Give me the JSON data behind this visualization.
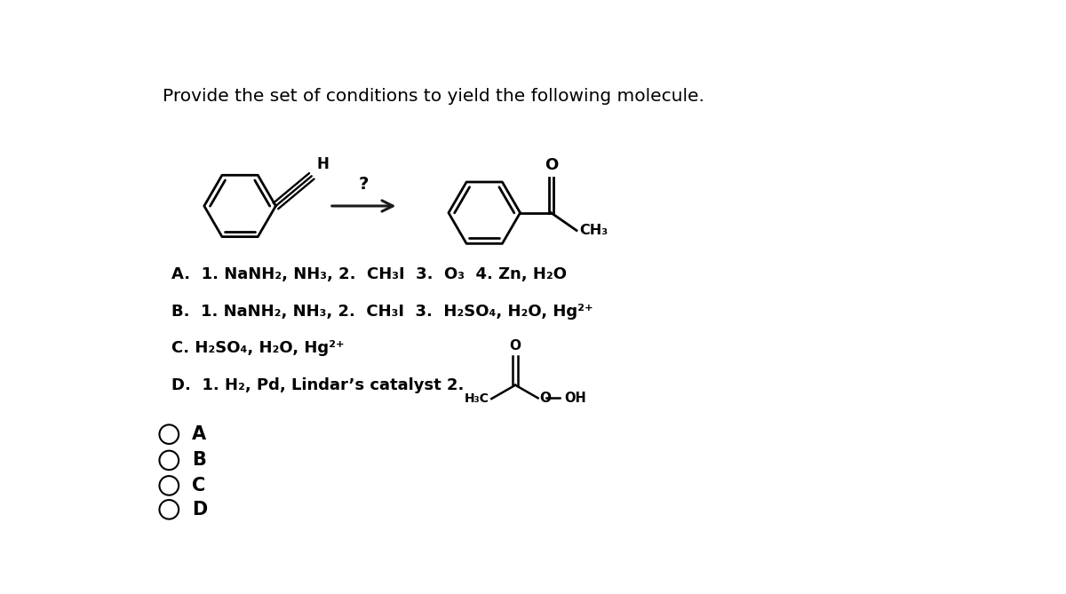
{
  "title": "Provide the set of conditions to yield the following molecule.",
  "title_fontsize": 14.5,
  "bg_color": "#ffffff",
  "text_color": "#000000",
  "option_A": "A.  1. NaNH₂, NH₃, 2.  CH₃I  3.  O₃  4. Zn, H₂O",
  "option_B": "B.  1. NaNH₂, NH₃, 2.  CH₃I  3.  H₂SO₄, H₂O, Hg²⁺",
  "option_C": "C. H₂SO₄, H₂O, Hg²⁺",
  "option_D_text": "D.  1. H₂, Pd, Lindar’s catalyst 2.",
  "option_fontsize": 13,
  "choice_fontsize": 15,
  "arrow_color": "#1a1a1a"
}
